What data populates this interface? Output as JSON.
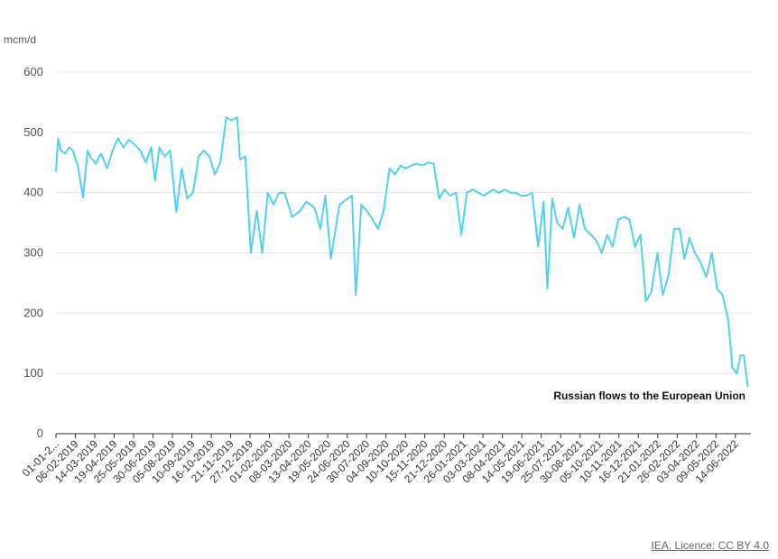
{
  "chart_data": {
    "type": "line",
    "ylabel": "mcm/d",
    "ylim": [
      0,
      600
    ],
    "y_ticks": [
      0,
      100,
      200,
      300,
      400,
      500,
      600
    ],
    "grid": true,
    "x_tick_labels": [
      "01-01-2...",
      "06-02-2019",
      "14-03-2019",
      "19-04-2019",
      "25-05-2019",
      "30-06-2019",
      "05-08-2019",
      "10-09-2019",
      "16-10-2019",
      "21-11-2019",
      "27-12-2019",
      "01-02-2020",
      "08-03-2020",
      "13-04-2020",
      "19-05-2020",
      "24-06-2020",
      "30-07-2020",
      "04-09-2020",
      "10-10-2020",
      "15-11-2020",
      "21-12-2020",
      "26-01-2021",
      "03-03-2021",
      "08-04-2021",
      "14-05-2021",
      "19-06-2021",
      "25-07-2021",
      "30-08-2021",
      "05-10-2021",
      "10-11-2021",
      "16-12-2021",
      "21-01-2022",
      "26-02-2022",
      "03-04-2022",
      "09-05-2022",
      "14-06-2022"
    ],
    "color": "#4fd1f0",
    "series": [
      {
        "name": "Russian flows to the European Union",
        "x": [
          "2019-01-01",
          "2019-01-05",
          "2019-01-10",
          "2019-01-18",
          "2019-01-25",
          "2019-02-01",
          "2019-02-10",
          "2019-02-20",
          "2019-02-28",
          "2019-03-05",
          "2019-03-15",
          "2019-03-25",
          "2019-04-05",
          "2019-04-15",
          "2019-04-25",
          "2019-05-05",
          "2019-05-15",
          "2019-05-25",
          "2019-06-05",
          "2019-06-15",
          "2019-06-25",
          "2019-07-02",
          "2019-07-10",
          "2019-07-20",
          "2019-07-30",
          "2019-08-10",
          "2019-08-20",
          "2019-08-30",
          "2019-09-10",
          "2019-09-20",
          "2019-09-30",
          "2019-10-10",
          "2019-10-20",
          "2019-10-30",
          "2019-11-10",
          "2019-11-20",
          "2019-11-30",
          "2019-12-05",
          "2019-12-15",
          "2019-12-25",
          "2020-01-05",
          "2020-01-15",
          "2020-01-25",
          "2020-02-05",
          "2020-02-15",
          "2020-02-25",
          "2020-03-10",
          "2020-03-25",
          "2020-04-05",
          "2020-04-20",
          "2020-05-01",
          "2020-05-10",
          "2020-05-20",
          "2020-06-05",
          "2020-06-20",
          "2020-06-28",
          "2020-07-05",
          "2020-07-15",
          "2020-07-25",
          "2020-08-05",
          "2020-08-15",
          "2020-08-25",
          "2020-09-05",
          "2020-09-15",
          "2020-09-25",
          "2020-10-05",
          "2020-10-15",
          "2020-10-25",
          "2020-11-05",
          "2020-11-15",
          "2020-11-25",
          "2020-12-05",
          "2020-12-15",
          "2020-12-25",
          "2021-01-05",
          "2021-01-15",
          "2021-01-25",
          "2021-02-05",
          "2021-02-15",
          "2021-02-25",
          "2021-03-05",
          "2021-03-15",
          "2021-03-25",
          "2021-04-05",
          "2021-04-15",
          "2021-04-25",
          "2021-05-05",
          "2021-05-15",
          "2021-05-25",
          "2021-06-05",
          "2021-06-15",
          "2021-06-22",
          "2021-07-01",
          "2021-07-10",
          "2021-07-20",
          "2021-07-30",
          "2021-08-10",
          "2021-08-20",
          "2021-08-30",
          "2021-09-10",
          "2021-09-20",
          "2021-09-30",
          "2021-10-10",
          "2021-10-20",
          "2021-10-30",
          "2021-11-10",
          "2021-11-20",
          "2021-11-30",
          "2021-12-10",
          "2021-12-20",
          "2021-12-30",
          "2022-01-10",
          "2022-01-20",
          "2022-01-30",
          "2022-02-10",
          "2022-02-20",
          "2022-03-01",
          "2022-03-10",
          "2022-03-20",
          "2022-03-30",
          "2022-04-10",
          "2022-04-20",
          "2022-04-30",
          "2022-05-10",
          "2022-05-20",
          "2022-05-28",
          "2022-06-05",
          "2022-06-12",
          "2022-06-18",
          "2022-06-25"
        ],
        "values": [
          435,
          490,
          470,
          465,
          475,
          470,
          445,
          392,
          470,
          460,
          448,
          465,
          440,
          470,
          490,
          475,
          488,
          480,
          470,
          450,
          475,
          420,
          475,
          460,
          470,
          368,
          440,
          390,
          400,
          460,
          470,
          460,
          430,
          450,
          525,
          520,
          525,
          455,
          460,
          300,
          370,
          300,
          400,
          380,
          400,
          400,
          360,
          370,
          385,
          375,
          340,
          395,
          290,
          380,
          390,
          395,
          230,
          380,
          370,
          355,
          340,
          370,
          440,
          430,
          445,
          440,
          445,
          448,
          445,
          450,
          448,
          390,
          405,
          395,
          400,
          330,
          400,
          405,
          400,
          395,
          400,
          405,
          400,
          405,
          400,
          400,
          395,
          395,
          400,
          310,
          385,
          240,
          390,
          350,
          340,
          375,
          325,
          380,
          340,
          330,
          320,
          300,
          330,
          310,
          355,
          360,
          355,
          310,
          330,
          220,
          235,
          300,
          230,
          260,
          340,
          340,
          290,
          325,
          300,
          285,
          260,
          300,
          240,
          230,
          190,
          110,
          100,
          130,
          130,
          78
        ]
      }
    ],
    "annotations": [
      {
        "text": "Russian flows to the European Union"
      }
    ]
  },
  "footer": {
    "source": "IEA. Licence: CC BY 4.0"
  }
}
